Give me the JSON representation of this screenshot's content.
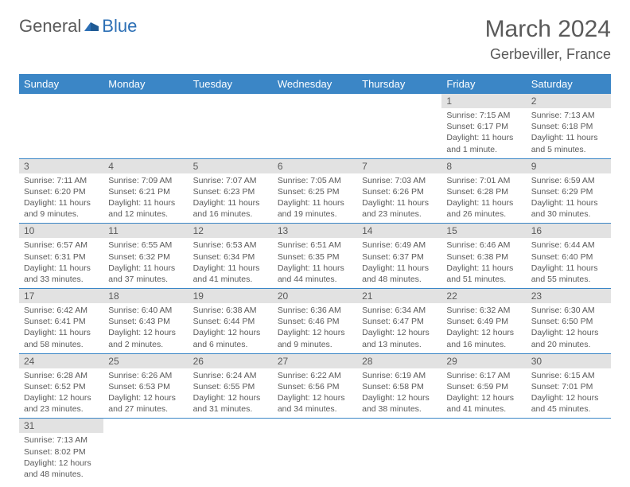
{
  "logo": {
    "general": "General",
    "blue": "Blue"
  },
  "title": "March 2024",
  "location": "Gerbeviller, France",
  "colors": {
    "header_bg": "#3b86c6",
    "header_text": "#ffffff",
    "daybar_bg": "#e2e2e2",
    "text": "#5a5a5a",
    "border": "#3b86c6",
    "logo_blue": "#2c6fb5"
  },
  "day_names": [
    "Sunday",
    "Monday",
    "Tuesday",
    "Wednesday",
    "Thursday",
    "Friday",
    "Saturday"
  ],
  "weeks": [
    [
      null,
      null,
      null,
      null,
      null,
      {
        "n": "1",
        "sr": "Sunrise: 7:15 AM",
        "ss": "Sunset: 6:17 PM",
        "dl1": "Daylight: 11 hours",
        "dl2": "and 1 minute."
      },
      {
        "n": "2",
        "sr": "Sunrise: 7:13 AM",
        "ss": "Sunset: 6:18 PM",
        "dl1": "Daylight: 11 hours",
        "dl2": "and 5 minutes."
      }
    ],
    [
      {
        "n": "3",
        "sr": "Sunrise: 7:11 AM",
        "ss": "Sunset: 6:20 PM",
        "dl1": "Daylight: 11 hours",
        "dl2": "and 9 minutes."
      },
      {
        "n": "4",
        "sr": "Sunrise: 7:09 AM",
        "ss": "Sunset: 6:21 PM",
        "dl1": "Daylight: 11 hours",
        "dl2": "and 12 minutes."
      },
      {
        "n": "5",
        "sr": "Sunrise: 7:07 AM",
        "ss": "Sunset: 6:23 PM",
        "dl1": "Daylight: 11 hours",
        "dl2": "and 16 minutes."
      },
      {
        "n": "6",
        "sr": "Sunrise: 7:05 AM",
        "ss": "Sunset: 6:25 PM",
        "dl1": "Daylight: 11 hours",
        "dl2": "and 19 minutes."
      },
      {
        "n": "7",
        "sr": "Sunrise: 7:03 AM",
        "ss": "Sunset: 6:26 PM",
        "dl1": "Daylight: 11 hours",
        "dl2": "and 23 minutes."
      },
      {
        "n": "8",
        "sr": "Sunrise: 7:01 AM",
        "ss": "Sunset: 6:28 PM",
        "dl1": "Daylight: 11 hours",
        "dl2": "and 26 minutes."
      },
      {
        "n": "9",
        "sr": "Sunrise: 6:59 AM",
        "ss": "Sunset: 6:29 PM",
        "dl1": "Daylight: 11 hours",
        "dl2": "and 30 minutes."
      }
    ],
    [
      {
        "n": "10",
        "sr": "Sunrise: 6:57 AM",
        "ss": "Sunset: 6:31 PM",
        "dl1": "Daylight: 11 hours",
        "dl2": "and 33 minutes."
      },
      {
        "n": "11",
        "sr": "Sunrise: 6:55 AM",
        "ss": "Sunset: 6:32 PM",
        "dl1": "Daylight: 11 hours",
        "dl2": "and 37 minutes."
      },
      {
        "n": "12",
        "sr": "Sunrise: 6:53 AM",
        "ss": "Sunset: 6:34 PM",
        "dl1": "Daylight: 11 hours",
        "dl2": "and 41 minutes."
      },
      {
        "n": "13",
        "sr": "Sunrise: 6:51 AM",
        "ss": "Sunset: 6:35 PM",
        "dl1": "Daylight: 11 hours",
        "dl2": "and 44 minutes."
      },
      {
        "n": "14",
        "sr": "Sunrise: 6:49 AM",
        "ss": "Sunset: 6:37 PM",
        "dl1": "Daylight: 11 hours",
        "dl2": "and 48 minutes."
      },
      {
        "n": "15",
        "sr": "Sunrise: 6:46 AM",
        "ss": "Sunset: 6:38 PM",
        "dl1": "Daylight: 11 hours",
        "dl2": "and 51 minutes."
      },
      {
        "n": "16",
        "sr": "Sunrise: 6:44 AM",
        "ss": "Sunset: 6:40 PM",
        "dl1": "Daylight: 11 hours",
        "dl2": "and 55 minutes."
      }
    ],
    [
      {
        "n": "17",
        "sr": "Sunrise: 6:42 AM",
        "ss": "Sunset: 6:41 PM",
        "dl1": "Daylight: 11 hours",
        "dl2": "and 58 minutes."
      },
      {
        "n": "18",
        "sr": "Sunrise: 6:40 AM",
        "ss": "Sunset: 6:43 PM",
        "dl1": "Daylight: 12 hours",
        "dl2": "and 2 minutes."
      },
      {
        "n": "19",
        "sr": "Sunrise: 6:38 AM",
        "ss": "Sunset: 6:44 PM",
        "dl1": "Daylight: 12 hours",
        "dl2": "and 6 minutes."
      },
      {
        "n": "20",
        "sr": "Sunrise: 6:36 AM",
        "ss": "Sunset: 6:46 PM",
        "dl1": "Daylight: 12 hours",
        "dl2": "and 9 minutes."
      },
      {
        "n": "21",
        "sr": "Sunrise: 6:34 AM",
        "ss": "Sunset: 6:47 PM",
        "dl1": "Daylight: 12 hours",
        "dl2": "and 13 minutes."
      },
      {
        "n": "22",
        "sr": "Sunrise: 6:32 AM",
        "ss": "Sunset: 6:49 PM",
        "dl1": "Daylight: 12 hours",
        "dl2": "and 16 minutes."
      },
      {
        "n": "23",
        "sr": "Sunrise: 6:30 AM",
        "ss": "Sunset: 6:50 PM",
        "dl1": "Daylight: 12 hours",
        "dl2": "and 20 minutes."
      }
    ],
    [
      {
        "n": "24",
        "sr": "Sunrise: 6:28 AM",
        "ss": "Sunset: 6:52 PM",
        "dl1": "Daylight: 12 hours",
        "dl2": "and 23 minutes."
      },
      {
        "n": "25",
        "sr": "Sunrise: 6:26 AM",
        "ss": "Sunset: 6:53 PM",
        "dl1": "Daylight: 12 hours",
        "dl2": "and 27 minutes."
      },
      {
        "n": "26",
        "sr": "Sunrise: 6:24 AM",
        "ss": "Sunset: 6:55 PM",
        "dl1": "Daylight: 12 hours",
        "dl2": "and 31 minutes."
      },
      {
        "n": "27",
        "sr": "Sunrise: 6:22 AM",
        "ss": "Sunset: 6:56 PM",
        "dl1": "Daylight: 12 hours",
        "dl2": "and 34 minutes."
      },
      {
        "n": "28",
        "sr": "Sunrise: 6:19 AM",
        "ss": "Sunset: 6:58 PM",
        "dl1": "Daylight: 12 hours",
        "dl2": "and 38 minutes."
      },
      {
        "n": "29",
        "sr": "Sunrise: 6:17 AM",
        "ss": "Sunset: 6:59 PM",
        "dl1": "Daylight: 12 hours",
        "dl2": "and 41 minutes."
      },
      {
        "n": "30",
        "sr": "Sunrise: 6:15 AM",
        "ss": "Sunset: 7:01 PM",
        "dl1": "Daylight: 12 hours",
        "dl2": "and 45 minutes."
      }
    ],
    [
      {
        "n": "31",
        "sr": "Sunrise: 7:13 AM",
        "ss": "Sunset: 8:02 PM",
        "dl1": "Daylight: 12 hours",
        "dl2": "and 48 minutes."
      },
      null,
      null,
      null,
      null,
      null,
      null
    ]
  ]
}
